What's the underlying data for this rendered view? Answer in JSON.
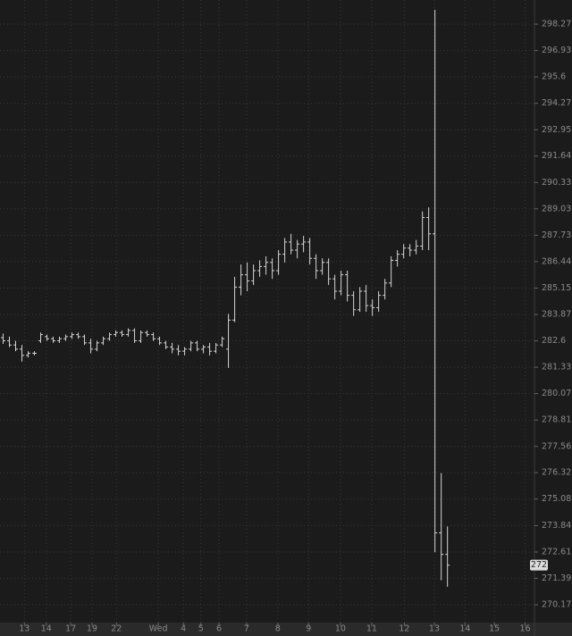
{
  "chart_data": {
    "type": "ohlc",
    "color": "#d4d4d4",
    "log_y": true,
    "grid": true,
    "x": [
      0,
      1,
      2,
      3,
      4,
      5,
      6,
      7,
      8,
      9,
      10,
      11,
      12,
      13,
      14,
      15,
      16,
      17,
      18,
      19,
      20,
      21,
      22,
      23,
      24,
      25,
      26,
      27,
      28,
      29,
      30,
      31,
      32,
      33,
      34,
      35,
      36,
      37,
      38,
      39,
      40,
      41,
      42,
      43,
      44,
      45,
      46,
      47,
      48,
      49,
      50,
      51,
      52,
      53,
      54,
      55,
      56,
      57,
      58,
      59,
      60,
      61,
      62,
      63,
      64,
      65,
      66,
      67,
      68,
      69,
      70,
      71
    ],
    "open": [
      282.75,
      282.6,
      282.4,
      282.2,
      281.9,
      282.0,
      282.6,
      282.8,
      282.7,
      282.6,
      282.7,
      282.8,
      282.9,
      282.8,
      282.5,
      282.2,
      282.5,
      282.7,
      282.9,
      283.0,
      282.9,
      283.1,
      282.6,
      283.0,
      282.9,
      282.7,
      282.5,
      282.3,
      282.2,
      282.1,
      282.2,
      282.5,
      282.2,
      282.3,
      282.1,
      282.4,
      282.2,
      283.6,
      285.2,
      285.8,
      285.5,
      286.0,
      286.2,
      286.4,
      286.0,
      286.8,
      287.4,
      287.0,
      287.3,
      287.4,
      286.6,
      286.0,
      286.4,
      285.6,
      285.0,
      285.8,
      284.8,
      284.1,
      285.0,
      284.3,
      284.2,
      284.8,
      285.4,
      286.5,
      286.8,
      287.1,
      287.0,
      287.2,
      288.6,
      287.8,
      273.5,
      272.5
    ],
    "high": [
      282.95,
      282.8,
      282.6,
      282.4,
      282.1,
      282.1,
      283.0,
      282.9,
      282.8,
      282.8,
      282.9,
      283.0,
      283.0,
      282.9,
      282.7,
      282.6,
      282.8,
      283.0,
      283.1,
      283.1,
      283.2,
      283.2,
      283.1,
      283.1,
      283.0,
      282.8,
      282.6,
      282.5,
      282.4,
      282.3,
      282.6,
      282.6,
      282.4,
      282.5,
      282.5,
      282.8,
      283.9,
      285.7,
      286.3,
      286.4,
      286.3,
      286.5,
      286.7,
      286.6,
      287.0,
      287.6,
      287.8,
      287.5,
      287.7,
      287.6,
      286.8,
      286.6,
      286.6,
      285.8,
      286.0,
      286.0,
      285.0,
      285.2,
      285.3,
      284.6,
      285.0,
      285.6,
      286.7,
      287.0,
      287.3,
      287.3,
      287.5,
      288.9,
      289.1,
      299.0,
      276.3,
      273.8
    ],
    "low": [
      282.45,
      282.3,
      282.1,
      281.6,
      281.8,
      281.9,
      282.5,
      282.6,
      282.5,
      282.5,
      282.6,
      282.7,
      282.7,
      282.4,
      282.0,
      282.1,
      282.4,
      282.6,
      282.8,
      282.8,
      282.8,
      282.5,
      282.5,
      282.8,
      282.6,
      282.4,
      282.2,
      282.0,
      281.9,
      281.9,
      282.1,
      282.1,
      282.0,
      281.9,
      282.0,
      282.3,
      281.3,
      283.5,
      284.8,
      285.0,
      285.3,
      285.7,
      285.8,
      285.6,
      285.8,
      286.4,
      286.8,
      286.6,
      286.9,
      286.3,
      285.6,
      285.8,
      285.3,
      284.6,
      284.8,
      284.5,
      283.8,
      284.0,
      284.0,
      283.8,
      284.0,
      284.6,
      285.2,
      286.2,
      286.6,
      286.7,
      286.8,
      287.0,
      287.0,
      272.6,
      271.3,
      271.0
    ],
    "close": [
      282.6,
      282.4,
      282.2,
      281.9,
      282.0,
      282.0,
      282.9,
      282.7,
      282.6,
      282.7,
      282.8,
      282.9,
      282.8,
      282.5,
      282.2,
      282.5,
      282.7,
      282.9,
      283.0,
      282.9,
      283.1,
      282.6,
      283.0,
      282.9,
      282.7,
      282.5,
      282.3,
      282.2,
      282.1,
      282.2,
      282.5,
      282.2,
      282.3,
      282.1,
      282.4,
      282.7,
      283.6,
      285.2,
      285.8,
      285.5,
      286.0,
      286.2,
      286.4,
      286.0,
      286.8,
      287.4,
      287.0,
      287.3,
      287.4,
      286.6,
      286.0,
      286.4,
      285.6,
      285.0,
      285.8,
      284.8,
      284.1,
      285.0,
      284.3,
      284.2,
      284.8,
      285.4,
      286.5,
      286.8,
      287.1,
      287.0,
      287.2,
      288.6,
      287.8,
      273.5,
      272.5,
      272.0
    ],
    "last_price": 272,
    "xlim": [
      -0.5,
      84.9
    ],
    "xticks": [
      {
        "value": 3.4,
        "label": "13"
      },
      {
        "value": 6.9,
        "label": "14"
      },
      {
        "value": 10.8,
        "label": "17"
      },
      {
        "value": 14.2,
        "label": "19"
      },
      {
        "value": 18.1,
        "label": "22"
      },
      {
        "value": 24.8,
        "label": "Wed"
      },
      {
        "value": 28.8,
        "label": "4"
      },
      {
        "value": 31.6,
        "label": "5"
      },
      {
        "value": 34.5,
        "label": "6"
      },
      {
        "value": 38.9,
        "label": "7"
      },
      {
        "value": 43.9,
        "label": "8"
      },
      {
        "value": 48.8,
        "label": "9"
      },
      {
        "value": 53.9,
        "label": "10"
      },
      {
        "value": 58.9,
        "label": "11"
      },
      {
        "value": 64.1,
        "label": "12"
      },
      {
        "value": 68.9,
        "label": "13"
      },
      {
        "value": 73.8,
        "label": "14"
      },
      {
        "value": 78.5,
        "label": "15"
      },
      {
        "value": 83.4,
        "label": "16"
      }
    ],
    "ylim": [
      269.35,
      299.5
    ],
    "yticks": [
      298.27,
      296.93,
      295.6,
      294.27,
      292.95,
      291.64,
      290.33,
      289.03,
      287.73,
      286.44,
      285.15,
      283.87,
      282.6,
      281.33,
      280.07,
      278.81,
      277.56,
      276.32,
      275.08,
      273.84,
      272.61,
      271.39,
      270.17
    ]
  }
}
